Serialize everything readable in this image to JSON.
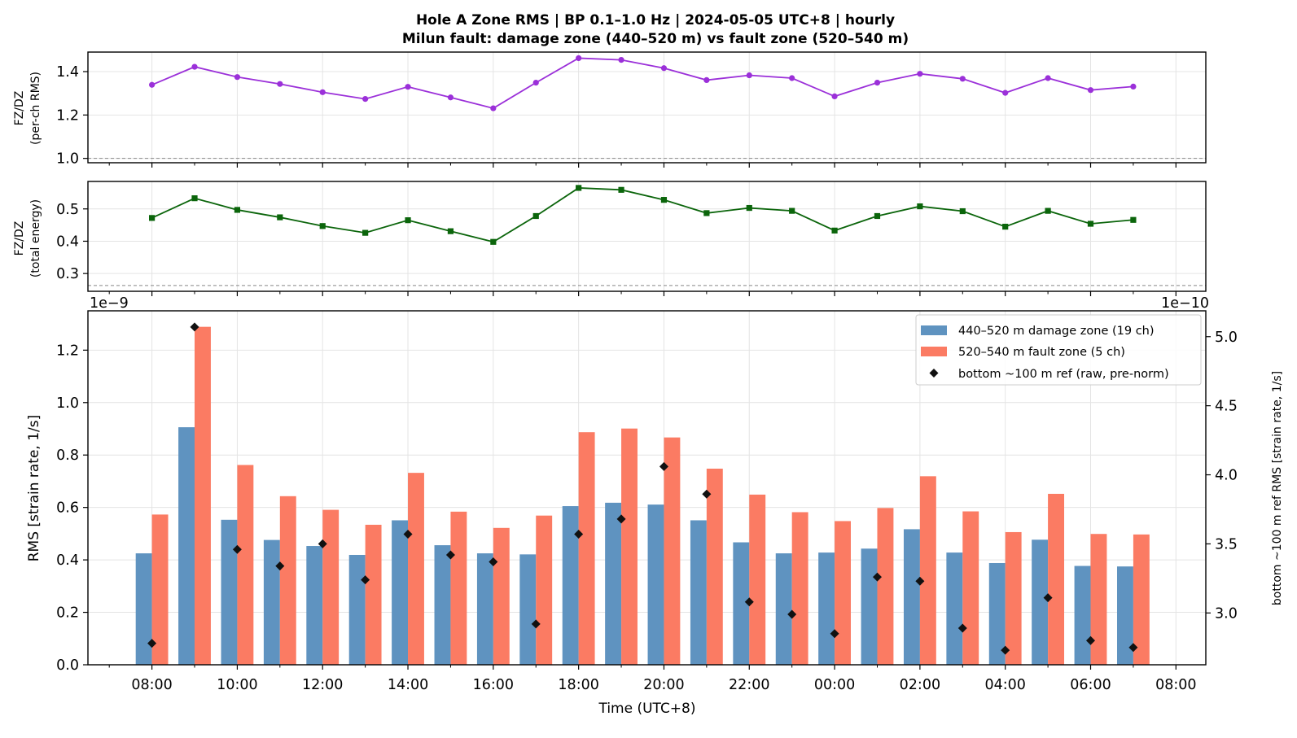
{
  "figure": {
    "title_line1": "Hole A Zone RMS  |  BP 0.1–1.0 Hz  |  2024-05-05 UTC+8  |  hourly",
    "title_line2": "Milun fault: damage zone (440–520 m) vs fault zone (520–540 m)"
  },
  "colors": {
    "damage_zone": "#5f93c0",
    "fault_zone": "#fb7b63",
    "bottom_ref": "#111111",
    "ratio_rms": "#9b30d9",
    "ratio_energy": "#0b650b",
    "reference_line": "#888888",
    "grid": "#e4e4e4"
  },
  "chart_data": [
    {
      "type": "line",
      "panel": "top",
      "ylabel_line1": "FZ/DZ",
      "ylabel_line2": "(per-ch RMS)",
      "ylim": [
        0.98,
        1.49
      ],
      "yticks": [
        "1.0",
        "1.2",
        "1.4"
      ],
      "ytick_values": [
        1.0,
        1.2,
        1.4
      ],
      "grid": true,
      "reference_line": 1.0,
      "marker": "circle",
      "x_hours": [
        8,
        9,
        10,
        11,
        12,
        13,
        14,
        15,
        16,
        17,
        18,
        19,
        20,
        21,
        22,
        23,
        24,
        25,
        26,
        27,
        28,
        29,
        30,
        31
      ],
      "values": [
        1.339,
        1.422,
        1.375,
        1.343,
        1.305,
        1.274,
        1.33,
        1.281,
        1.231,
        1.349,
        1.462,
        1.454,
        1.416,
        1.361,
        1.383,
        1.37,
        1.286,
        1.349,
        1.39,
        1.367,
        1.302,
        1.37,
        1.315,
        1.331
      ]
    },
    {
      "type": "line",
      "panel": "middle",
      "ylabel_line1": "FZ/DZ",
      "ylabel_line2": "(total energy)",
      "ylim": [
        0.245,
        0.585
      ],
      "yticks": [
        "0.3",
        "0.4",
        "0.5"
      ],
      "ytick_values": [
        0.3,
        0.4,
        0.5
      ],
      "grid": true,
      "reference_line": 0.263,
      "marker": "square",
      "x_hours": [
        8,
        9,
        10,
        11,
        12,
        13,
        14,
        15,
        16,
        17,
        18,
        19,
        20,
        21,
        22,
        23,
        24,
        25,
        26,
        27,
        28,
        29,
        30,
        31
      ],
      "values": [
        0.472,
        0.533,
        0.497,
        0.474,
        0.447,
        0.426,
        0.465,
        0.431,
        0.398,
        0.478,
        0.565,
        0.559,
        0.528,
        0.487,
        0.503,
        0.494,
        0.433,
        0.478,
        0.508,
        0.493,
        0.445,
        0.494,
        0.454,
        0.466
      ],
      "left_offset_label": "1e−9",
      "right_offset_label": "1e−10"
    },
    {
      "type": "bar",
      "panel": "bottom",
      "xlabel": "Time (UTC+8)",
      "ylabel": "RMS  [strain rate, 1/s]",
      "y2label": "bottom ~100 m ref RMS  [strain rate, 1/s]",
      "categories": [
        "08:00",
        "09:00",
        "10:00",
        "11:00",
        "12:00",
        "13:00",
        "14:00",
        "15:00",
        "16:00",
        "17:00",
        "18:00",
        "19:00",
        "20:00",
        "21:00",
        "22:00",
        "23:00",
        "00:00",
        "01:00",
        "02:00",
        "03:00",
        "04:00",
        "05:00",
        "06:00",
        "07:00"
      ],
      "x_hours": [
        8,
        9,
        10,
        11,
        12,
        13,
        14,
        15,
        16,
        17,
        18,
        19,
        20,
        21,
        22,
        23,
        24,
        25,
        26,
        27,
        28,
        29,
        30,
        31
      ],
      "xlim_hours": [
        6.5,
        32.7
      ],
      "xticks": [
        "08:00",
        "10:00",
        "12:00",
        "14:00",
        "16:00",
        "18:00",
        "20:00",
        "22:00",
        "00:00",
        "02:00",
        "04:00",
        "06:00",
        "08:00"
      ],
      "xtick_hours": [
        8,
        10,
        12,
        14,
        16,
        18,
        20,
        22,
        24,
        26,
        28,
        30,
        32
      ],
      "minor_xtick_hours": [
        7,
        9,
        11,
        13,
        15,
        17,
        19,
        21,
        23,
        25,
        27,
        29,
        31
      ],
      "ylim": [
        0,
        1.35
      ],
      "yticks": [
        "0.0",
        "0.2",
        "0.4",
        "0.6",
        "0.8",
        "1.0",
        "1.2"
      ],
      "ytick_values": [
        0,
        0.2,
        0.4,
        0.6,
        0.8,
        1.0,
        1.2
      ],
      "y2lim": [
        2.625,
        5.187
      ],
      "y2ticks": [
        "3.0",
        "3.5",
        "4.0",
        "4.5",
        "5.0"
      ],
      "y2tick_values": [
        3.0,
        3.5,
        4.0,
        4.5,
        5.0
      ],
      "grid": true,
      "legend_position": "upper right",
      "series": [
        {
          "name": "440–520 m  damage zone (19 ch)",
          "axis": "left",
          "values": [
            0.425,
            0.906,
            0.553,
            0.476,
            0.453,
            0.419,
            0.551,
            0.456,
            0.425,
            0.421,
            0.605,
            0.618,
            0.611,
            0.551,
            0.467,
            0.425,
            0.428,
            0.443,
            0.517,
            0.428,
            0.388,
            0.477,
            0.377,
            0.375
          ]
        },
        {
          "name": "520–540 m  fault zone (5 ch)",
          "axis": "left",
          "values": [
            0.573,
            1.289,
            0.762,
            0.643,
            0.591,
            0.534,
            0.732,
            0.584,
            0.522,
            0.569,
            0.887,
            0.901,
            0.867,
            0.748,
            0.649,
            0.582,
            0.548,
            0.598,
            0.719,
            0.585,
            0.506,
            0.652,
            0.499,
            0.497
          ]
        },
        {
          "name": "bottom ~100 m ref (raw, pre-norm)",
          "axis": "right",
          "marker": "diamond",
          "values": [
            2.78,
            5.07,
            3.46,
            3.34,
            3.5,
            3.24,
            3.57,
            3.42,
            3.37,
            2.92,
            3.57,
            3.68,
            4.06,
            3.86,
            3.08,
            2.99,
            2.85,
            3.26,
            3.23,
            2.89,
            2.73,
            3.11,
            2.8,
            2.75
          ]
        }
      ]
    }
  ]
}
